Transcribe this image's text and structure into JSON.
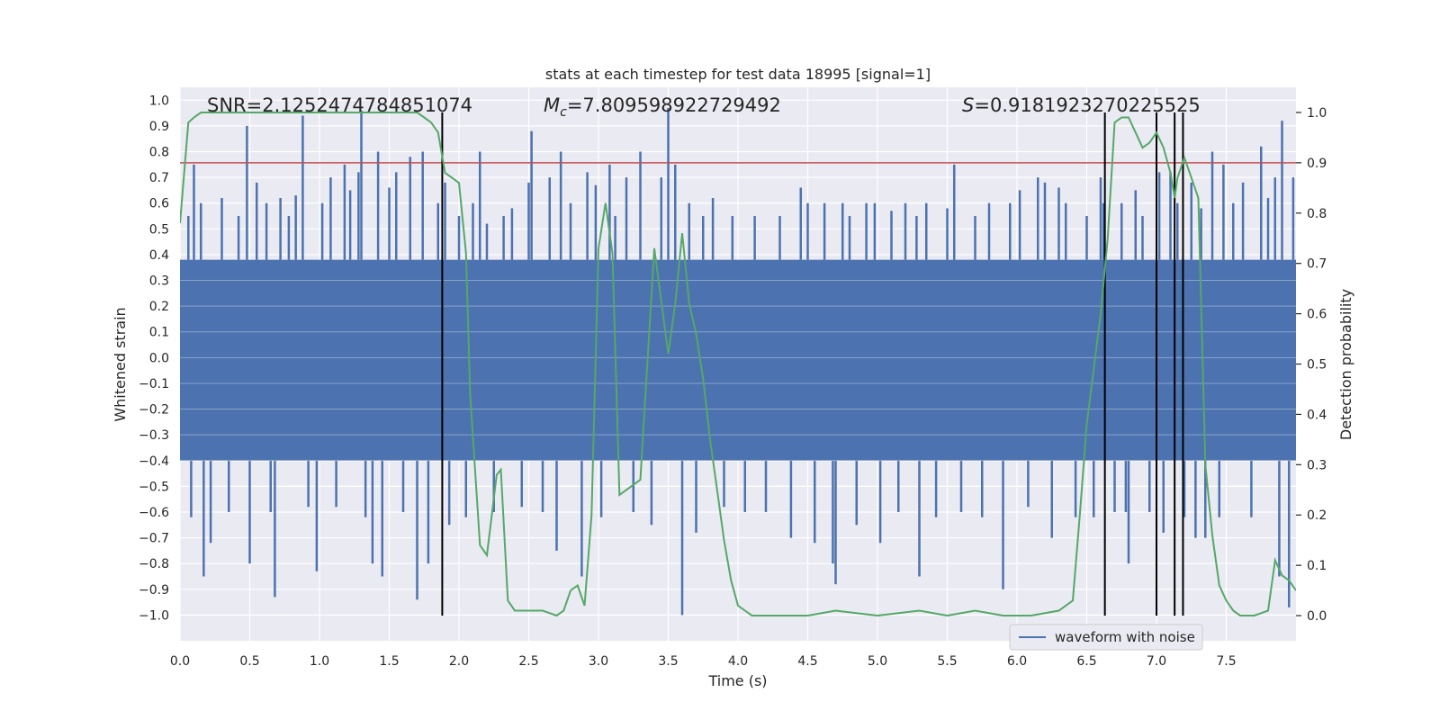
{
  "chart_data": {
    "type": "line",
    "title": "stats at each timestep for test data 18995 [signal=1]",
    "xlabel": "Time (s)",
    "ylabel": "Whitened strain",
    "y2label": "Detection probability",
    "xlim": [
      0.0,
      8.0
    ],
    "ylim": [
      -1.1,
      1.05
    ],
    "y2lim": [
      -0.05,
      1.05
    ],
    "xticks": [
      0.0,
      0.5,
      1.0,
      1.5,
      2.0,
      2.5,
      3.0,
      3.5,
      4.0,
      4.5,
      5.0,
      5.5,
      6.0,
      6.5,
      7.0,
      7.5
    ],
    "xtick_labels": [
      "0.0",
      "0.5",
      "1.0",
      "1.5",
      "2.0",
      "2.5",
      "3.0",
      "3.5",
      "4.0",
      "4.5",
      "5.0",
      "5.5",
      "6.0",
      "6.5",
      "7.0",
      "7.5"
    ],
    "yticks": [
      -1.0,
      -0.9,
      -0.8,
      -0.7,
      -0.6,
      -0.5,
      -0.4,
      -0.3,
      -0.2,
      -0.1,
      0.0,
      0.1,
      0.2,
      0.3,
      0.4,
      0.5,
      0.6,
      0.7,
      0.8,
      0.9,
      1.0
    ],
    "ytick_labels": [
      "−1.0",
      "−0.9",
      "−0.8",
      "−0.7",
      "−0.6",
      "−0.5",
      "−0.4",
      "−0.3",
      "−0.2",
      "−0.1",
      "0.0",
      "0.1",
      "0.2",
      "0.3",
      "0.4",
      "0.5",
      "0.6",
      "0.7",
      "0.8",
      "0.9",
      "1.0"
    ],
    "y2ticks": [
      0.0,
      0.1,
      0.2,
      0.3,
      0.4,
      0.5,
      0.6,
      0.7,
      0.8,
      0.9,
      1.0
    ],
    "y2tick_labels": [
      "0.0",
      "0.1",
      "0.2",
      "0.3",
      "0.4",
      "0.5",
      "0.6",
      "0.7",
      "0.8",
      "0.9",
      "1.0"
    ],
    "grid": true,
    "legend": {
      "position": "lower-right",
      "entries": [
        "waveform with noise"
      ]
    },
    "annotations": {
      "snr": "SNR=2.1252474784851074",
      "mc_symbol": "M",
      "mc_sub": "c",
      "mc_value": "=7.809598922729492",
      "s_symbol": "S",
      "s_value": "=0.9181923270225525"
    },
    "threshold": {
      "axis": "right",
      "value": 0.9
    },
    "detection_lines_x": [
      1.88,
      6.63,
      7.0,
      7.13,
      7.19
    ],
    "waveform": {
      "name": "waveform with noise",
      "band": [
        -0.4,
        0.38
      ],
      "spikes": [
        [
          0.06,
          0.55
        ],
        [
          0.08,
          -0.62
        ],
        [
          0.1,
          0.75
        ],
        [
          0.15,
          0.6
        ],
        [
          0.17,
          -0.85
        ],
        [
          0.22,
          -0.72
        ],
        [
          0.3,
          0.62
        ],
        [
          0.35,
          -0.6
        ],
        [
          0.42,
          0.55
        ],
        [
          0.48,
          0.9
        ],
        [
          0.5,
          -0.8
        ],
        [
          0.55,
          0.68
        ],
        [
          0.62,
          0.6
        ],
        [
          0.65,
          -0.6
        ],
        [
          0.68,
          -0.93
        ],
        [
          0.72,
          0.62
        ],
        [
          0.78,
          0.55
        ],
        [
          0.83,
          0.63
        ],
        [
          0.88,
          0.94
        ],
        [
          0.92,
          -0.58
        ],
        [
          0.98,
          -0.83
        ],
        [
          1.02,
          0.6
        ],
        [
          1.08,
          0.7
        ],
        [
          1.12,
          -0.58
        ],
        [
          1.18,
          0.75
        ],
        [
          1.22,
          0.65
        ],
        [
          1.28,
          0.72
        ],
        [
          1.3,
          0.96
        ],
        [
          1.33,
          -0.62
        ],
        [
          1.38,
          -0.8
        ],
        [
          1.42,
          0.8
        ],
        [
          1.45,
          -0.85
        ],
        [
          1.5,
          0.66
        ],
        [
          1.55,
          0.72
        ],
        [
          1.6,
          -0.6
        ],
        [
          1.65,
          0.78
        ],
        [
          1.7,
          -0.94
        ],
        [
          1.74,
          0.8
        ],
        [
          1.78,
          -0.8
        ],
        [
          1.85,
          0.6
        ],
        [
          1.9,
          0.68
        ],
        [
          1.93,
          -0.65
        ],
        [
          2.0,
          0.55
        ],
        [
          2.05,
          -0.62
        ],
        [
          2.1,
          0.6
        ],
        [
          2.15,
          0.8
        ],
        [
          2.2,
          0.52
        ],
        [
          2.25,
          -0.6
        ],
        [
          2.32,
          0.55
        ],
        [
          2.38,
          0.58
        ],
        [
          2.45,
          -0.58
        ],
        [
          2.5,
          0.68
        ],
        [
          2.52,
          0.88
        ],
        [
          2.6,
          -0.6
        ],
        [
          2.65,
          0.7
        ],
        [
          2.7,
          -0.75
        ],
        [
          2.73,
          0.8
        ],
        [
          2.8,
          0.6
        ],
        [
          2.88,
          -0.85
        ],
        [
          2.92,
          0.72
        ],
        [
          2.98,
          0.67
        ],
        [
          3.02,
          -0.62
        ],
        [
          3.08,
          0.75
        ],
        [
          3.12,
          0.55
        ],
        [
          3.2,
          0.7
        ],
        [
          3.25,
          -0.6
        ],
        [
          3.3,
          0.8
        ],
        [
          3.38,
          -0.65
        ],
        [
          3.45,
          0.7
        ],
        [
          3.5,
          0.97
        ],
        [
          3.55,
          0.75
        ],
        [
          3.6,
          -1.0
        ],
        [
          3.65,
          0.6
        ],
        [
          3.7,
          -0.68
        ],
        [
          3.75,
          0.55
        ],
        [
          3.82,
          0.62
        ],
        [
          3.9,
          -0.58
        ],
        [
          3.96,
          0.55
        ],
        [
          4.05,
          -0.6
        ],
        [
          4.12,
          0.55
        ],
        [
          4.2,
          -0.6
        ],
        [
          4.3,
          0.55
        ],
        [
          4.38,
          -0.7
        ],
        [
          4.45,
          0.66
        ],
        [
          4.5,
          0.6
        ],
        [
          4.55,
          -0.72
        ],
        [
          4.62,
          0.6
        ],
        [
          4.68,
          -0.8
        ],
        [
          4.7,
          -0.88
        ],
        [
          4.75,
          0.6
        ],
        [
          4.8,
          0.55
        ],
        [
          4.85,
          -0.65
        ],
        [
          4.92,
          0.6
        ],
        [
          4.98,
          0.6
        ],
        [
          5.02,
          -0.72
        ],
        [
          5.1,
          0.57
        ],
        [
          5.15,
          -0.6
        ],
        [
          5.2,
          0.6
        ],
        [
          5.28,
          0.55
        ],
        [
          5.3,
          -0.85
        ],
        [
          5.35,
          0.6
        ],
        [
          5.42,
          -0.62
        ],
        [
          5.5,
          0.58
        ],
        [
          5.55,
          0.75
        ],
        [
          5.6,
          -0.6
        ],
        [
          5.7,
          0.55
        ],
        [
          5.75,
          -0.62
        ],
        [
          5.8,
          0.6
        ],
        [
          5.9,
          -0.9
        ],
        [
          5.95,
          0.6
        ],
        [
          6.02,
          0.65
        ],
        [
          6.08,
          -0.58
        ],
        [
          6.15,
          0.7
        ],
        [
          6.2,
          0.68
        ],
        [
          6.25,
          -0.7
        ],
        [
          6.3,
          0.66
        ],
        [
          6.35,
          0.6
        ],
        [
          6.42,
          -0.62
        ],
        [
          6.5,
          0.55
        ],
        [
          6.55,
          -0.62
        ],
        [
          6.6,
          0.7
        ],
        [
          6.62,
          0.6
        ],
        [
          6.7,
          -0.6
        ],
        [
          6.75,
          0.6
        ],
        [
          6.78,
          -0.6
        ],
        [
          6.8,
          -0.8
        ],
        [
          6.85,
          0.65
        ],
        [
          6.9,
          0.55
        ],
        [
          6.95,
          -0.6
        ],
        [
          7.02,
          0.72
        ],
        [
          7.05,
          -0.68
        ],
        [
          7.1,
          0.72
        ],
        [
          7.15,
          0.6
        ],
        [
          7.2,
          -0.62
        ],
        [
          7.25,
          0.68
        ],
        [
          7.28,
          -0.7
        ],
        [
          7.32,
          0.58
        ],
        [
          7.35,
          -0.7
        ],
        [
          7.4,
          0.8
        ],
        [
          7.45,
          -0.62
        ],
        [
          7.48,
          0.75
        ],
        [
          7.55,
          0.6
        ],
        [
          7.62,
          0.68
        ],
        [
          7.68,
          -0.62
        ],
        [
          7.75,
          0.82
        ],
        [
          7.8,
          0.62
        ],
        [
          7.85,
          0.7
        ],
        [
          7.88,
          -0.85
        ],
        [
          7.9,
          0.92
        ],
        [
          7.95,
          -0.97
        ],
        [
          7.98,
          0.7
        ]
      ]
    },
    "detection_probability": {
      "name": "detection probability",
      "x": [
        0.0,
        0.06,
        0.1,
        0.15,
        0.3,
        0.5,
        1.0,
        1.5,
        1.7,
        1.75,
        1.8,
        1.85,
        1.9,
        1.95,
        2.0,
        2.05,
        2.08,
        2.15,
        2.2,
        2.27,
        2.3,
        2.35,
        2.4,
        2.45,
        2.5,
        2.6,
        2.7,
        2.75,
        2.8,
        2.85,
        2.9,
        2.95,
        3.0,
        3.05,
        3.1,
        3.15,
        3.2,
        3.3,
        3.4,
        3.5,
        3.55,
        3.6,
        3.65,
        3.7,
        3.75,
        3.8,
        3.85,
        3.9,
        3.95,
        4.0,
        4.05,
        4.1,
        4.3,
        4.5,
        4.7,
        5.0,
        5.3,
        5.5,
        5.7,
        5.9,
        6.1,
        6.3,
        6.4,
        6.45,
        6.5,
        6.6,
        6.65,
        6.7,
        6.75,
        6.8,
        6.85,
        6.9,
        6.95,
        7.0,
        7.05,
        7.1,
        7.13,
        7.15,
        7.2,
        7.25,
        7.3,
        7.35,
        7.4,
        7.45,
        7.5,
        7.55,
        7.6,
        7.7,
        7.8,
        7.85,
        7.9,
        7.95,
        8.0
      ],
      "y": [
        0.78,
        0.98,
        0.99,
        1.0,
        1.0,
        1.0,
        1.0,
        1.0,
        1.0,
        0.99,
        0.98,
        0.96,
        0.88,
        0.87,
        0.86,
        0.72,
        0.44,
        0.14,
        0.12,
        0.28,
        0.29,
        0.03,
        0.01,
        0.01,
        0.01,
        0.01,
        0.0,
        0.01,
        0.05,
        0.06,
        0.02,
        0.2,
        0.73,
        0.82,
        0.72,
        0.24,
        0.25,
        0.27,
        0.73,
        0.52,
        0.62,
        0.76,
        0.62,
        0.56,
        0.47,
        0.35,
        0.25,
        0.15,
        0.07,
        0.02,
        0.01,
        0.0,
        0.0,
        0.0,
        0.01,
        0.0,
        0.01,
        0.0,
        0.01,
        0.0,
        0.0,
        0.01,
        0.03,
        0.2,
        0.38,
        0.6,
        0.75,
        0.98,
        0.99,
        0.99,
        0.96,
        0.93,
        0.94,
        0.96,
        0.93,
        0.88,
        0.83,
        0.87,
        0.91,
        0.87,
        0.83,
        0.3,
        0.16,
        0.06,
        0.03,
        0.01,
        0.0,
        0.0,
        0.01,
        0.11,
        0.08,
        0.07,
        0.05
      ]
    },
    "colors": {
      "plot_bg": "#eaeaf2",
      "grid": "#ffffff",
      "waveform": "#4c72b0",
      "probability": "#55a868",
      "threshold": "#c44e52",
      "detection_line": "#000000",
      "text": "#262626"
    }
  }
}
